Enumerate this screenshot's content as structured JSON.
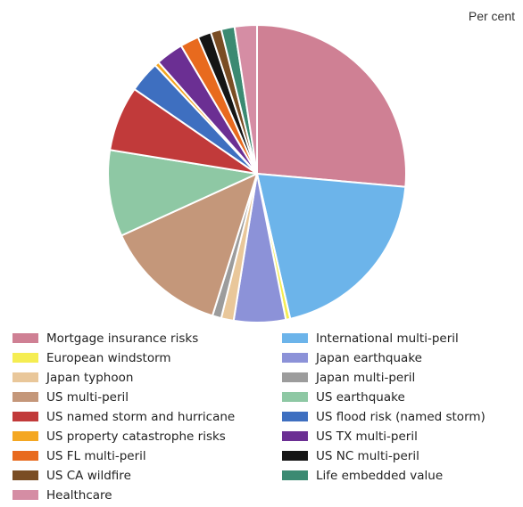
{
  "unit_note": "Per cent",
  "chart_data": {
    "type": "pie",
    "title": "",
    "unit": "Per cent",
    "start": "12 o'clock",
    "direction": "clockwise",
    "legend_position": "bottom",
    "slices": [
      {
        "label": "Mortgage insurance risks",
        "value": 27.3,
        "color": "#cf8094"
      },
      {
        "label": "International multi-peril",
        "value": 20.7,
        "color": "#6cb4ea"
      },
      {
        "label": "European windstorm",
        "value": 0.5,
        "color": "#f5ed52"
      },
      {
        "label": "Japan earthquake",
        "value": 5.8,
        "color": "#8c92d8"
      },
      {
        "label": "Japan typhoon",
        "value": 1.4,
        "color": "#e9c79a"
      },
      {
        "label": "Japan multi-peril",
        "value": 1.0,
        "color": "#9c9c9c"
      },
      {
        "label": "US multi-peril",
        "value": 13.8,
        "color": "#c4977a"
      },
      {
        "label": "US earthquake",
        "value": 9.7,
        "color": "#8ec8a4"
      },
      {
        "label": "US named storm and hurricane",
        "value": 7.3,
        "color": "#c13a3a"
      },
      {
        "label": "US flood risk (named storm)",
        "value": 3.5,
        "color": "#3e6fc0"
      },
      {
        "label": "US property catastrophe risks",
        "value": 0.5,
        "color": "#f4a722"
      },
      {
        "label": "US TX multi-peril",
        "value": 3.1,
        "color": "#6b2f93"
      },
      {
        "label": "US FL multi-peril",
        "value": 2.1,
        "color": "#e86a1e"
      },
      {
        "label": "US NC multi-peril",
        "value": 1.5,
        "color": "#151515"
      },
      {
        "label": "US CA wildfire",
        "value": 1.2,
        "color": "#7a4d24"
      },
      {
        "label": "Life embedded value",
        "value": 1.5,
        "color": "#3b8a72"
      },
      {
        "label": "Healthcare",
        "value": 2.5,
        "color": "#d58da4"
      }
    ],
    "legend": [
      {
        "label": "Mortgage insurance risks",
        "color": "#cf8094"
      },
      {
        "label": "International multi-peril",
        "color": "#6cb4ea"
      },
      {
        "label": "European windstorm",
        "color": "#f5ed52"
      },
      {
        "label": "Japan earthquake",
        "color": "#8c92d8"
      },
      {
        "label": "Japan typhoon",
        "color": "#e9c79a"
      },
      {
        "label": "Japan multi-peril",
        "color": "#9c9c9c"
      },
      {
        "label": "US multi-peril",
        "color": "#c4977a"
      },
      {
        "label": "US earthquake",
        "color": "#8ec8a4"
      },
      {
        "label": "US named storm and hurricane",
        "color": "#c13a3a"
      },
      {
        "label": "US flood risk (named storm)",
        "color": "#3e6fc0"
      },
      {
        "label": "US property catastrophe risks",
        "color": "#f4a722"
      },
      {
        "label": "US TX multi-peril",
        "color": "#6b2f93"
      },
      {
        "label": "US FL multi-peril",
        "color": "#e86a1e"
      },
      {
        "label": "US NC multi-peril",
        "color": "#151515"
      },
      {
        "label": "US CA wildfire",
        "color": "#7a4d24"
      },
      {
        "label": "Life embedded value",
        "color": "#3b8a72"
      },
      {
        "label": "Healthcare",
        "color": "#d58da4"
      }
    ]
  }
}
